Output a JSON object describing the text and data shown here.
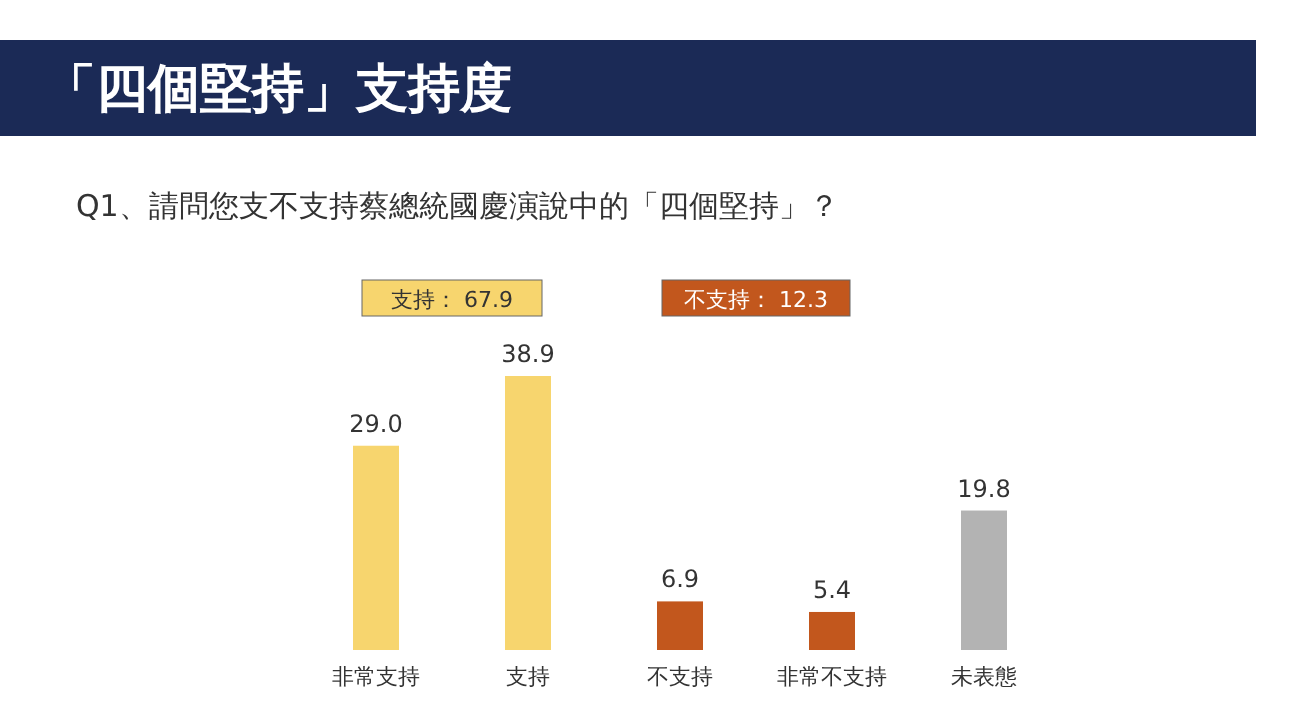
{
  "chart_data": {
    "type": "bar",
    "title": "「四個堅持」支持度",
    "subtitle": "Q1、請問您支不支持蔡總統國慶演說中的「四個堅持」？",
    "categories": [
      "非常支持",
      "支持",
      "不支持",
      "非常不支持",
      "未表態"
    ],
    "values": [
      29.0,
      38.9,
      6.9,
      5.4,
      19.8
    ],
    "value_labels": [
      "29.0",
      "38.9",
      "6.9",
      "5.4",
      "19.8"
    ],
    "colors": [
      "#f7d56e",
      "#f7d56e",
      "#c2571d",
      "#c2571d",
      "#b3b3b3"
    ],
    "annotations": [
      "支持： 67.9",
      "不支持： 12.3"
    ]
  }
}
